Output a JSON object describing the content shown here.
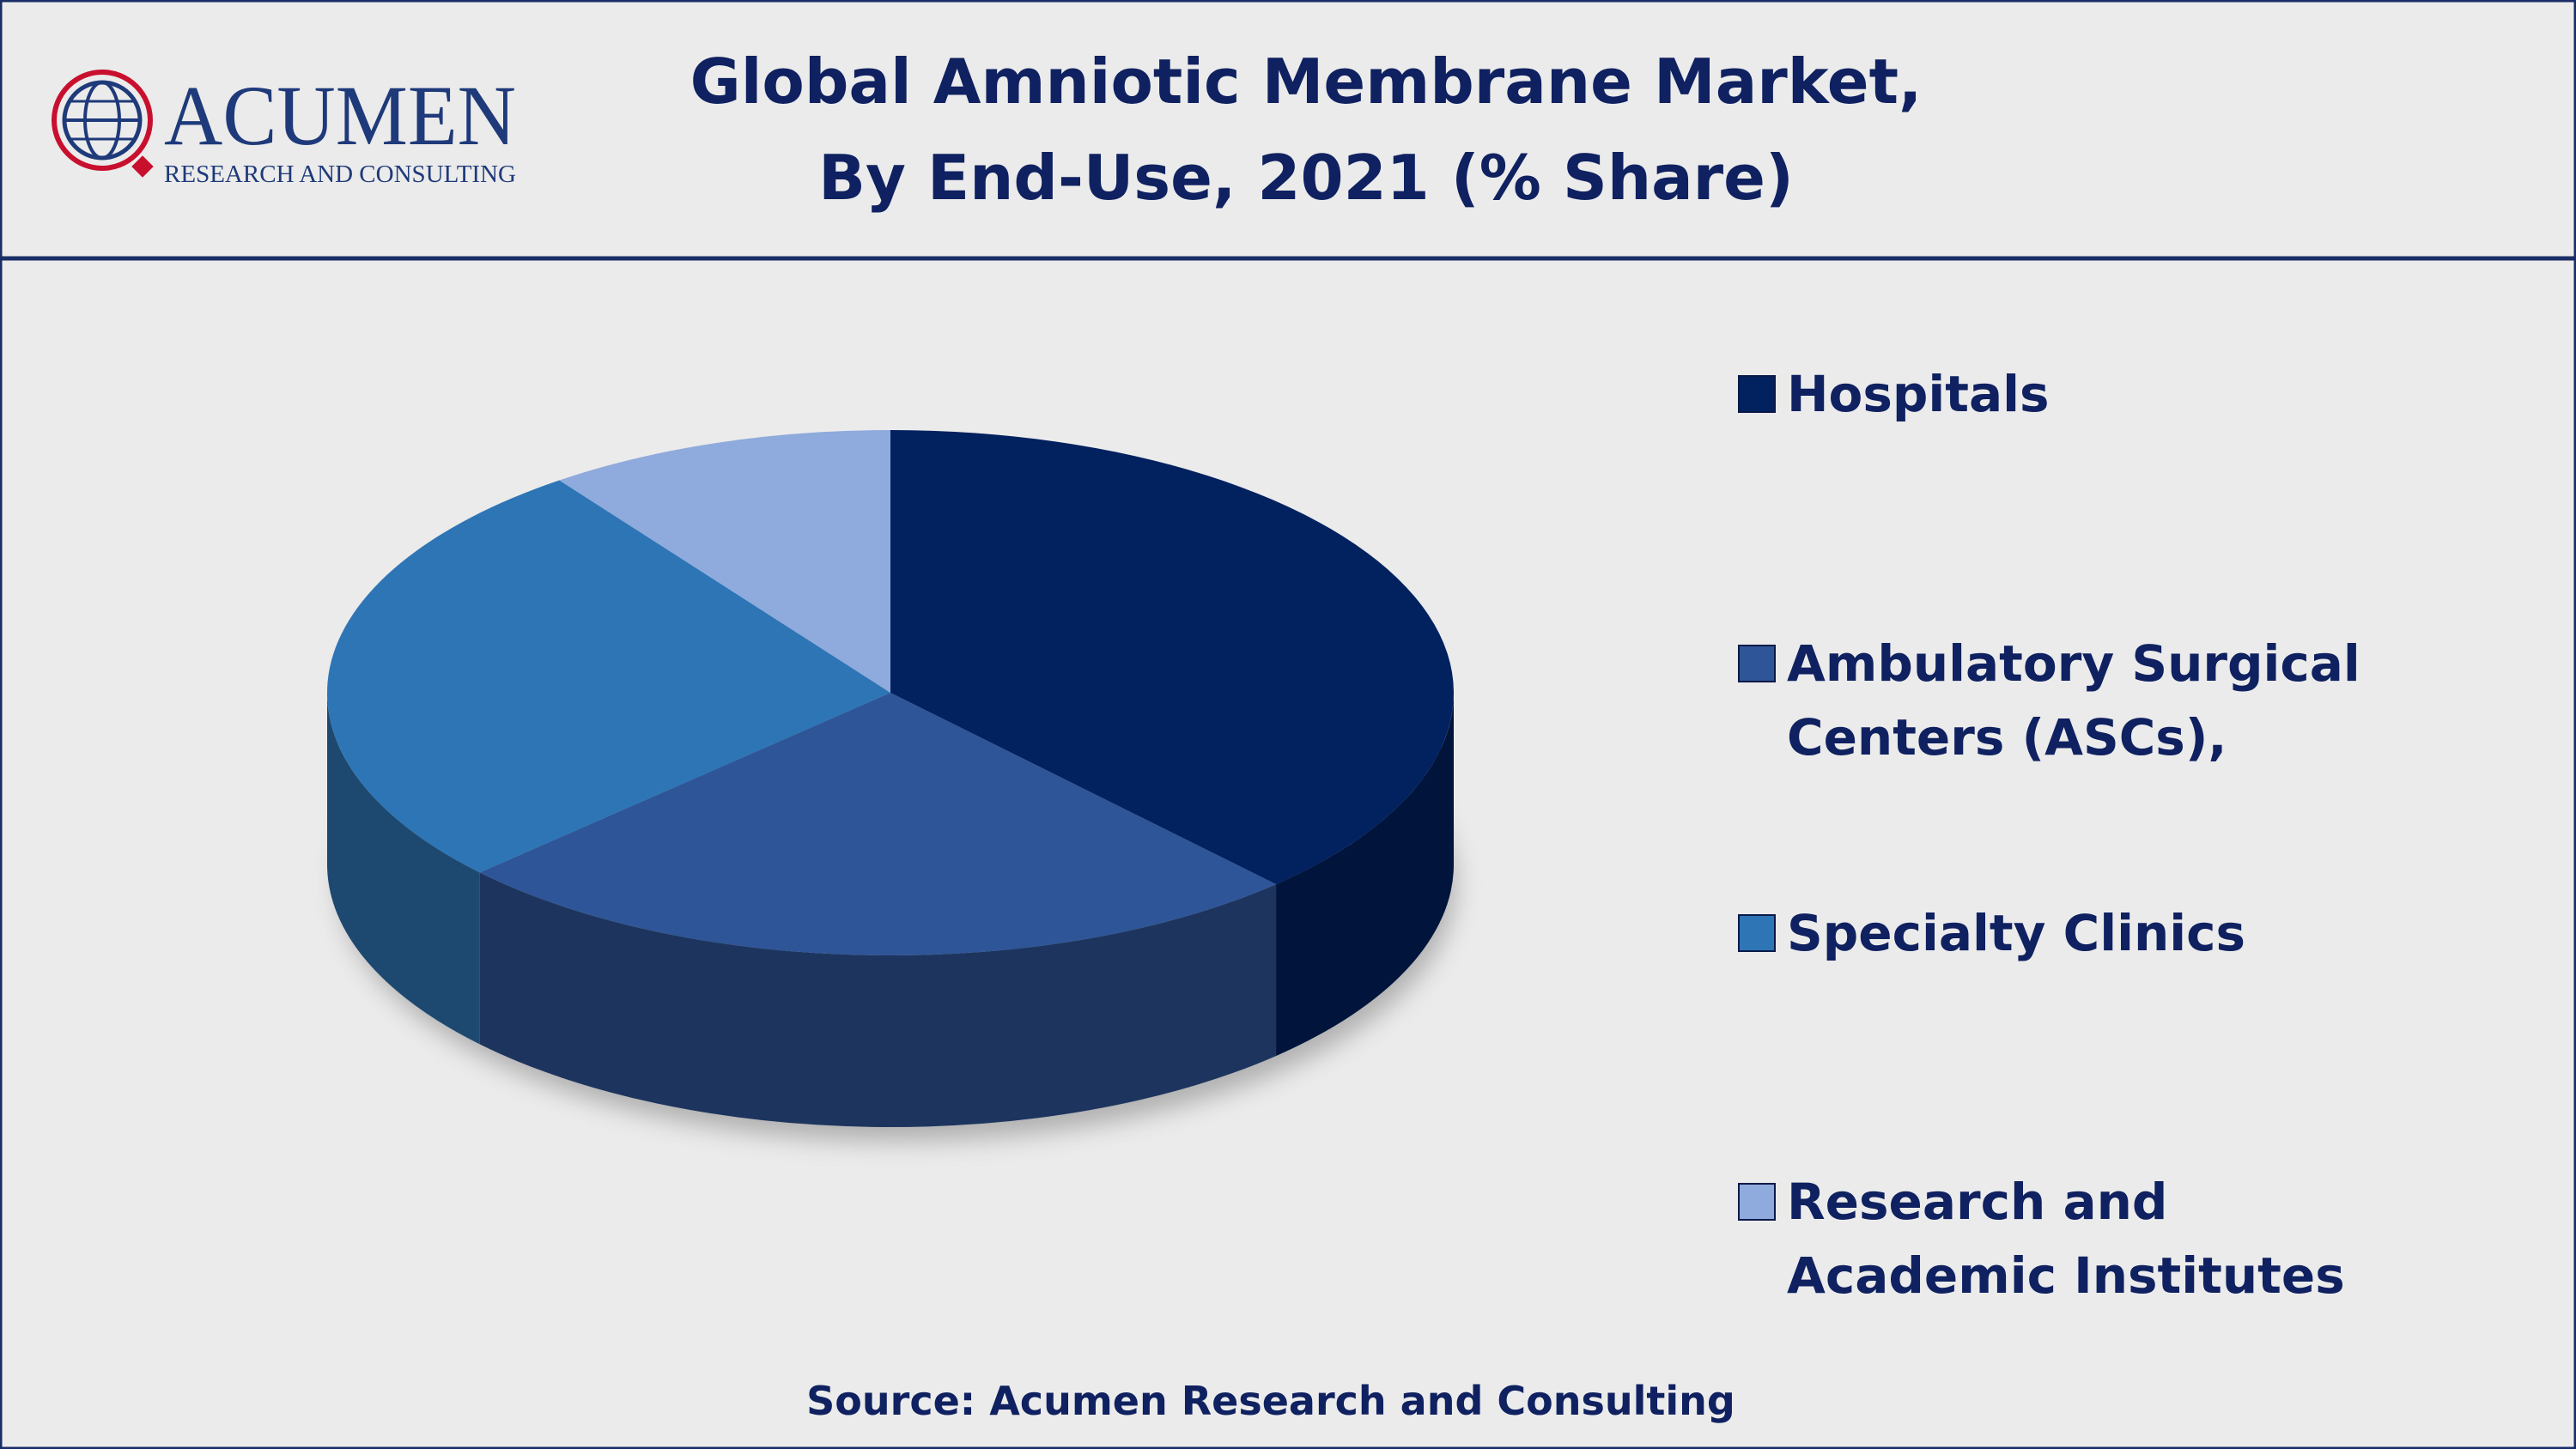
{
  "logo": {
    "name": "ACUMEN",
    "tagline": "RESEARCH AND CONSULTING"
  },
  "chart_data": {
    "type": "pie",
    "title": [
      "Global Amniotic Membrane Market,",
      "By End-Use, 2021 (% Share)"
    ],
    "categories": [
      "Hospitals",
      "Ambulatory Surgical Centers (ASCs),",
      "Specialty Clinics",
      "Research and Academic Institutes"
    ],
    "values": [
      38,
      25,
      27,
      10
    ],
    "colors": [
      "#02215f",
      "#2e5597",
      "#2e75b6",
      "#8faadc"
    ],
    "legend": "right"
  },
  "source": "Source: Acumen Research and Consulting"
}
